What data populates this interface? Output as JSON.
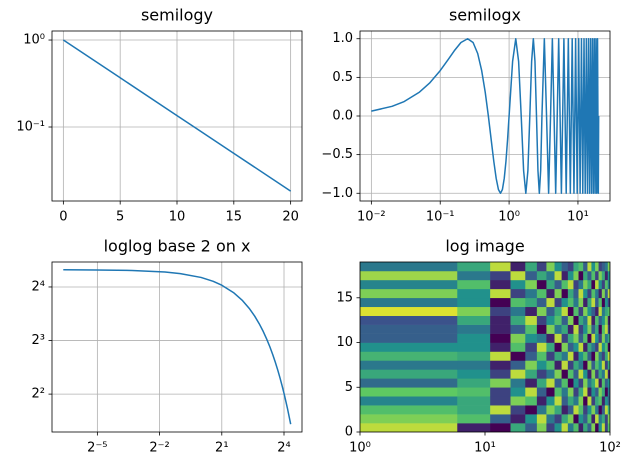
{
  "chart_data": [
    {
      "type": "line",
      "title": "semilogy",
      "xscale": "linear",
      "yscale": "log",
      "grid": true,
      "color": "#1f77b4",
      "x": [
        0,
        5,
        10,
        15,
        20
      ],
      "values": [
        1,
        0.3679,
        0.1353,
        0.0498,
        0.0183
      ],
      "xlim": [
        -1,
        21
      ],
      "xticks": [
        0,
        5,
        10,
        15,
        20
      ],
      "ylim": [
        0.0141,
        1.27
      ],
      "yticks": [
        {
          "value": 0.1,
          "label": "10⁻¹"
        },
        {
          "value": 1,
          "label": "10⁰"
        }
      ]
    },
    {
      "type": "line",
      "title": "semilogx",
      "xscale": "log",
      "yscale": "linear",
      "grid": true,
      "color": "#1f77b4",
      "x": [
        0.01,
        0.02,
        0.03,
        0.05,
        0.07,
        0.1,
        0.13,
        0.16,
        0.2,
        0.25,
        0.3,
        0.35,
        0.4,
        0.45,
        0.5,
        0.55,
        0.6,
        0.65,
        0.7,
        0.75,
        0.8,
        0.85,
        0.9,
        0.95,
        1.0,
        1.125,
        1.25,
        1.375,
        1.5,
        1.625,
        1.75,
        1.875,
        2.0,
        2.125,
        2.25,
        2.375,
        2.5,
        2.625,
        2.75,
        2.875,
        3.0,
        3.25,
        3.5,
        3.75,
        4.0,
        4.25,
        4.5,
        4.75,
        5.0,
        5.25,
        5.5,
        5.75,
        6.0,
        6.25,
        6.5,
        6.75,
        7.0,
        7.25,
        7.5,
        7.75,
        8.0,
        8.25,
        8.5,
        8.75,
        9.0,
        9.25,
        9.5,
        9.75,
        10.0,
        10.25,
        10.5,
        10.75,
        11.0,
        11.25,
        11.5,
        11.75,
        12.0,
        12.25,
        12.5,
        12.75,
        13.0,
        13.25,
        13.5,
        13.75,
        14.0,
        14.25,
        14.5,
        14.75,
        15.0,
        15.25,
        15.5,
        15.75,
        16.0,
        16.25,
        16.5,
        16.75,
        17.0,
        17.25,
        17.5,
        17.75,
        18.0,
        18.25,
        18.5,
        18.75,
        19.0,
        19.25,
        19.5,
        19.75,
        20.0
      ],
      "values": [
        0.0628,
        0.1253,
        0.1874,
        0.309,
        0.4258,
        0.5878,
        0.729,
        0.8443,
        0.9511,
        1,
        0.9511,
        0.809,
        0.5878,
        0.309,
        0,
        -0.309,
        -0.5878,
        -0.809,
        -0.9511,
        -1,
        -0.9511,
        -0.809,
        -0.5878,
        -0.309,
        0,
        0.7071,
        1,
        0.7071,
        0,
        -0.7071,
        -1,
        -0.7071,
        0,
        0.7071,
        1,
        0.7071,
        0,
        -0.7071,
        -1,
        -0.7071,
        0,
        1,
        0,
        -1,
        0,
        1,
        0,
        -1,
        0,
        1,
        0,
        -1,
        0,
        1,
        0,
        -1,
        0,
        1,
        0,
        -1,
        0,
        1,
        0,
        -1,
        0,
        1,
        0,
        -1,
        0,
        1,
        0,
        -1,
        0,
        1,
        0,
        -1,
        0,
        1,
        0,
        -1,
        0,
        1,
        0,
        -1,
        0,
        1,
        0,
        -1,
        0,
        1,
        0,
        -1,
        0,
        1,
        0,
        -1,
        0,
        1,
        0,
        -1,
        0,
        1,
        0,
        -1,
        0,
        1,
        0,
        -1,
        0
      ],
      "xlim": [
        0.00684,
        29.2
      ],
      "xticks": [
        {
          "value": 0.01,
          "label": "10⁻²"
        },
        {
          "value": 0.1,
          "label": "10⁻¹"
        },
        {
          "value": 1,
          "label": "10⁰"
        },
        {
          "value": 10,
          "label": "10¹"
        }
      ],
      "ylim": [
        -1.1,
        1.1
      ],
      "yticks": [
        {
          "value": -1,
          "label": "−1.0"
        },
        {
          "value": -0.5,
          "label": "−0.5"
        },
        {
          "value": 0,
          "label": "0.0"
        },
        {
          "value": 0.5,
          "label": "0.5"
        },
        {
          "value": 1,
          "label": "1.0"
        }
      ]
    },
    {
      "type": "line",
      "title": "loglog base 2 on x",
      "xscale": "log",
      "yscale": "log",
      "grid": true,
      "color": "#1f77b4",
      "x": [
        0.01,
        0.03,
        0.1,
        0.3,
        0.5,
        1,
        1.5,
        2,
        3,
        4,
        5,
        6,
        7,
        8,
        9,
        10,
        11,
        12,
        13,
        14,
        15,
        16,
        17,
        18,
        19,
        20
      ],
      "values": [
        19.98,
        19.94,
        19.8,
        19.41,
        19.02,
        18.1,
        17.21,
        16.37,
        14.82,
        13.41,
        12.13,
        10.98,
        9.93,
        8.99,
        8.13,
        7.36,
        6.66,
        6.02,
        5.45,
        4.93,
        4.46,
        4.04,
        3.65,
        3.31,
        2.99,
        2.71
      ],
      "xlim": [
        0.00686,
        29.2
      ],
      "xticks": [
        {
          "value": 0.03125,
          "label": "2⁻⁵"
        },
        {
          "value": 0.25,
          "label": "2⁻²"
        },
        {
          "value": 2,
          "label": "2¹"
        },
        {
          "value": 16,
          "label": "2⁴"
        }
      ],
      "ylim": [
        2.45,
        22.1
      ],
      "yticks": [
        {
          "value": 4,
          "label": "2²"
        },
        {
          "value": 8,
          "label": "2³"
        },
        {
          "value": 16,
          "label": "2⁴"
        }
      ]
    },
    {
      "type": "heatmap",
      "title": "log image",
      "xscale": "log",
      "yscale": "linear",
      "grid": false,
      "colormap": "viridis",
      "x_edges": [
        1,
        6,
        11,
        16,
        21,
        26,
        31,
        36,
        41,
        46,
        51,
        56,
        61,
        66,
        71,
        76,
        81,
        86,
        91,
        96,
        101
      ],
      "y_edges": [
        0,
        1,
        2,
        3,
        4,
        5,
        6,
        7,
        8,
        9,
        10,
        11,
        12,
        13,
        14,
        15,
        16,
        17,
        18,
        19
      ],
      "z": [
        [
          0.9,
          0.1,
          0.0,
          0.6,
          0.3,
          0.8,
          0.2,
          0.5,
          0.9,
          0.4,
          0.7,
          0.1,
          0.6,
          0.3,
          0.8,
          0.0,
          0.5,
          0.9,
          0.2,
          0.7
        ],
        [
          0.8,
          0.7,
          0.3,
          0.1,
          0.5,
          0.9,
          0.4,
          0.2,
          0.6,
          0.8,
          0.0,
          0.5,
          0.3,
          0.7,
          0.1,
          0.9,
          0.4,
          0.6,
          0.2,
          0.8
        ],
        [
          0.7,
          0.6,
          0.9,
          0.2,
          0.0,
          0.4,
          0.8,
          0.6,
          0.1,
          0.3,
          0.9,
          0.7,
          0.2,
          0.5,
          0.8,
          0.4,
          0.0,
          0.3,
          0.9,
          0.6
        ],
        [
          0.45,
          0.6,
          0.2,
          0.8,
          0.7,
          0.1,
          0.5,
          0.9,
          0.3,
          0.6,
          0.4,
          0.8,
          0.0,
          0.9,
          0.2,
          0.6,
          0.7,
          0.1,
          0.5,
          0.3
        ],
        [
          0.75,
          0.7,
          0.2,
          0.5,
          0.9,
          0.3,
          0.0,
          0.7,
          0.4,
          0.8,
          0.2,
          0.6,
          0.9,
          0.1,
          0.5,
          0.3,
          0.8,
          0.6,
          0.0,
          0.4
        ],
        [
          0.35,
          0.6,
          0.8,
          0.4,
          0.1,
          0.6,
          0.9,
          0.3,
          0.7,
          0.0,
          0.5,
          0.2,
          0.8,
          0.4,
          0.6,
          0.9,
          0.1,
          0.7,
          0.3,
          0.5
        ],
        [
          0.6,
          0.5,
          0.2,
          0.9,
          0.6,
          0.2,
          0.4,
          0.8,
          0.0,
          0.7,
          0.3,
          0.9,
          0.5,
          0.1,
          0.8,
          0.2,
          0.6,
          0.4,
          0.9,
          0.1
        ],
        [
          0.4,
          0.4,
          0.1,
          0.3,
          0.8,
          0.5,
          0.7,
          0.1,
          0.9,
          0.2,
          0.6,
          0.4,
          0.0,
          0.8,
          0.3,
          0.7,
          0.5,
          0.9,
          0.2,
          0.6
        ],
        [
          0.65,
          0.6,
          0.9,
          0.0,
          0.3,
          0.7,
          0.2,
          0.6,
          0.4,
          0.9,
          0.1,
          0.5,
          0.7,
          0.3,
          0.0,
          0.8,
          0.4,
          0.2,
          0.6,
          0.9
        ],
        [
          0.5,
          0.5,
          0.1,
          0.7,
          0.2,
          0.9,
          0.6,
          0.0,
          0.8,
          0.3,
          0.5,
          0.9,
          0.1,
          0.6,
          0.4,
          0.2,
          0.9,
          0.5,
          0.7,
          0.0
        ],
        [
          0.3,
          0.5,
          0.0,
          0.8,
          0.5,
          0.4,
          0.1,
          0.9,
          0.2,
          0.6,
          0.8,
          0.3,
          0.7,
          0.0,
          0.9,
          0.5,
          0.2,
          0.8,
          0.4,
          0.6
        ],
        [
          0.3,
          0.4,
          0.1,
          0.3,
          0.7,
          0.0,
          0.8,
          0.4,
          0.6,
          0.1,
          0.9,
          0.2,
          0.5,
          0.8,
          0.3,
          0.6,
          0.0,
          0.7,
          0.9,
          0.2
        ],
        [
          0.25,
          0.6,
          0.1,
          0.6,
          0.9,
          0.2,
          0.5,
          0.7,
          0.3,
          0.8,
          0.0,
          0.6,
          0.4,
          0.9,
          0.1,
          0.7,
          0.3,
          0.5,
          0.8,
          0.1
        ],
        [
          0.95,
          0.8,
          0.2,
          0.4,
          0.1,
          0.8,
          0.3,
          0.6,
          0.9,
          0.0,
          0.7,
          0.2,
          0.8,
          0.5,
          0.3,
          0.1,
          0.9,
          0.4,
          0.6,
          0.7
        ],
        [
          0.4,
          0.5,
          0.0,
          0.7,
          0.6,
          0.3,
          0.9,
          0.2,
          0.5,
          0.7,
          0.4,
          0.8,
          0.1,
          0.6,
          0.9,
          0.3,
          0.7,
          0.0,
          0.5,
          0.2
        ],
        [
          0.8,
          0.5,
          0.9,
          0.2,
          0.4,
          0.7,
          0.1,
          0.8,
          0.0,
          0.6,
          0.3,
          0.9,
          0.5,
          0.2,
          0.7,
          0.4,
          0.1,
          0.8,
          0.3,
          0.9
        ],
        [
          0.45,
          0.7,
          0.1,
          0.5,
          0.8,
          0.0,
          0.6,
          0.3,
          0.7,
          0.9,
          0.2,
          0.4,
          0.8,
          0.6,
          0.0,
          0.9,
          0.5,
          0.2,
          0.7,
          0.4
        ],
        [
          0.85,
          0.4,
          0.2,
          0.9,
          0.3,
          0.6,
          0.4,
          0.9,
          0.1,
          0.5,
          0.8,
          0.0,
          0.6,
          0.3,
          0.7,
          0.2,
          0.8,
          0.6,
          0.1,
          0.5
        ],
        [
          0.4,
          0.6,
          0.9,
          0.1,
          0.6,
          0.2,
          0.8,
          0.5,
          0.3,
          0.2,
          0.6,
          0.7,
          0.3,
          0.9,
          0.5,
          0.8,
          0.2,
          0.3,
          0.4,
          0.8
        ]
      ],
      "xlim": [
        1,
        100
      ],
      "xticks": [
        {
          "value": 1,
          "label": "10⁰"
        },
        {
          "value": 10,
          "label": "10¹"
        },
        {
          "value": 100,
          "label": "10²"
        }
      ],
      "ylim": [
        0,
        19
      ],
      "yticks": [
        0,
        5,
        10,
        15
      ]
    }
  ]
}
